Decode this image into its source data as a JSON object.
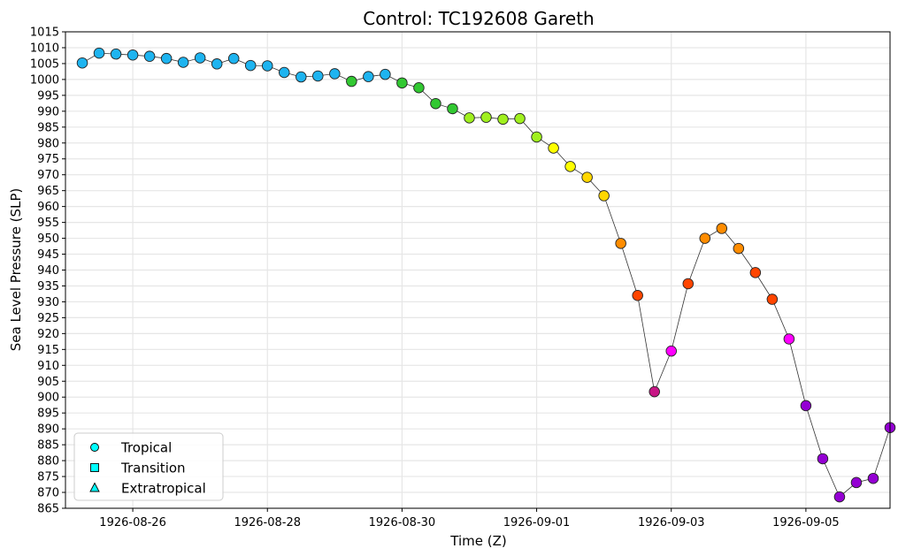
{
  "chart_data": {
    "type": "scatter",
    "title": "Control: TC192608 Gareth",
    "xlabel": "Time (Z)",
    "ylabel": "Sea Level Pressure (SLP)",
    "ylim": [
      865,
      1015
    ],
    "xlim": [
      "1926-08-25T00:00",
      "1926-09-06T06:00"
    ],
    "yticks": [
      865,
      870,
      875,
      880,
      885,
      890,
      895,
      900,
      905,
      910,
      915,
      920,
      925,
      930,
      935,
      940,
      945,
      950,
      955,
      960,
      965,
      970,
      975,
      980,
      985,
      990,
      995,
      1000,
      1005,
      1010,
      1015
    ],
    "xticks": [
      "1926-08-26",
      "1926-08-28",
      "1926-08-30",
      "1926-09-01",
      "1926-09-03",
      "1926-09-05"
    ],
    "grid": true,
    "legend_position": "lower-left",
    "legend": [
      {
        "label": "Tropical",
        "marker": "circle",
        "color": "#00ffff"
      },
      {
        "label": "Transition",
        "marker": "square",
        "color": "#00ffff"
      },
      {
        "label": "Extratropical",
        "marker": "triangle",
        "color": "#00ffff"
      }
    ],
    "series": [
      {
        "marker": "circle",
        "line_color": "#333333",
        "points": [
          {
            "x": "1926-08-25T06:00",
            "y": 1005.2,
            "color": "#1eb4f0"
          },
          {
            "x": "1926-08-25T12:00",
            "y": 1008.3,
            "color": "#1eb4f0"
          },
          {
            "x": "1926-08-25T18:00",
            "y": 1008.0,
            "color": "#1eb4f0"
          },
          {
            "x": "1926-08-26T00:00",
            "y": 1007.7,
            "color": "#1eb4f0"
          },
          {
            "x": "1926-08-26T06:00",
            "y": 1007.3,
            "color": "#1eb4f0"
          },
          {
            "x": "1926-08-26T12:00",
            "y": 1006.6,
            "color": "#1eb4f0"
          },
          {
            "x": "1926-08-26T18:00",
            "y": 1005.4,
            "color": "#1eb4f0"
          },
          {
            "x": "1926-08-27T00:00",
            "y": 1006.8,
            "color": "#1eb4f0"
          },
          {
            "x": "1926-08-27T06:00",
            "y": 1004.9,
            "color": "#1eb4f0"
          },
          {
            "x": "1926-08-27T12:00",
            "y": 1006.6,
            "color": "#1eb4f0"
          },
          {
            "x": "1926-08-27T18:00",
            "y": 1004.4,
            "color": "#1eb4f0"
          },
          {
            "x": "1926-08-28T00:00",
            "y": 1004.3,
            "color": "#1eb4f0"
          },
          {
            "x": "1926-08-28T06:00",
            "y": 1002.2,
            "color": "#1eb4f0"
          },
          {
            "x": "1926-08-28T12:00",
            "y": 1000.8,
            "color": "#1eb4f0"
          },
          {
            "x": "1926-08-28T18:00",
            "y": 1001.1,
            "color": "#1eb4f0"
          },
          {
            "x": "1926-08-29T00:00",
            "y": 1001.8,
            "color": "#1eb4f0"
          },
          {
            "x": "1926-08-29T06:00",
            "y": 999.4,
            "color": "#32c832"
          },
          {
            "x": "1926-08-29T12:00",
            "y": 1000.9,
            "color": "#1eb4f0"
          },
          {
            "x": "1926-08-29T18:00",
            "y": 1001.6,
            "color": "#1eb4f0"
          },
          {
            "x": "1926-08-30T00:00",
            "y": 998.9,
            "color": "#32c832"
          },
          {
            "x": "1926-08-30T06:00",
            "y": 997.4,
            "color": "#32c832"
          },
          {
            "x": "1926-08-30T12:00",
            "y": 992.4,
            "color": "#32c832"
          },
          {
            "x": "1926-08-30T18:00",
            "y": 990.8,
            "color": "#32c832"
          },
          {
            "x": "1926-08-31T00:00",
            "y": 987.9,
            "color": "#a0f01e"
          },
          {
            "x": "1926-08-31T06:00",
            "y": 988.1,
            "color": "#a0f01e"
          },
          {
            "x": "1926-08-31T12:00",
            "y": 987.5,
            "color": "#a0f01e"
          },
          {
            "x": "1926-08-31T18:00",
            "y": 987.7,
            "color": "#a0f01e"
          },
          {
            "x": "1926-09-01T00:00",
            "y": 981.9,
            "color": "#a0f01e"
          },
          {
            "x": "1926-09-01T06:00",
            "y": 978.4,
            "color": "#ffff00"
          },
          {
            "x": "1926-09-01T12:00",
            "y": 972.6,
            "color": "#ffff00"
          },
          {
            "x": "1926-09-01T18:00",
            "y": 969.2,
            "color": "#ffd700"
          },
          {
            "x": "1926-09-02T00:00",
            "y": 963.4,
            "color": "#ffd700"
          },
          {
            "x": "1926-09-02T06:00",
            "y": 948.4,
            "color": "#ff8c00"
          },
          {
            "x": "1926-09-02T12:00",
            "y": 932.0,
            "color": "#ff4500"
          },
          {
            "x": "1926-09-02T18:00",
            "y": 901.7,
            "color": "#c71585"
          },
          {
            "x": "1926-09-03T00:00",
            "y": 914.5,
            "color": "#ff00ff"
          },
          {
            "x": "1926-09-03T06:00",
            "y": 935.7,
            "color": "#ff4500"
          },
          {
            "x": "1926-09-03T12:00",
            "y": 950.0,
            "color": "#ff8c00"
          },
          {
            "x": "1926-09-03T18:00",
            "y": 953.1,
            "color": "#ff8c00"
          },
          {
            "x": "1926-09-04T00:00",
            "y": 946.8,
            "color": "#ff8c00"
          },
          {
            "x": "1926-09-04T06:00",
            "y": 939.2,
            "color": "#ff4500"
          },
          {
            "x": "1926-09-04T12:00",
            "y": 930.8,
            "color": "#ff4500"
          },
          {
            "x": "1926-09-04T18:00",
            "y": 918.3,
            "color": "#ff00ff"
          },
          {
            "x": "1926-09-05T00:00",
            "y": 897.3,
            "color": "#9400d3"
          },
          {
            "x": "1926-09-05T06:00",
            "y": 880.6,
            "color": "#9400d3"
          },
          {
            "x": "1926-09-05T12:00",
            "y": 868.6,
            "color": "#9400d3"
          },
          {
            "x": "1926-09-05T18:00",
            "y": 873.1,
            "color": "#9400d3"
          },
          {
            "x": "1926-09-06T00:00",
            "y": 874.4,
            "color": "#9400d3"
          },
          {
            "x": "1926-09-06T06:00",
            "y": 890.4,
            "color": "#9400d3"
          }
        ]
      }
    ]
  }
}
